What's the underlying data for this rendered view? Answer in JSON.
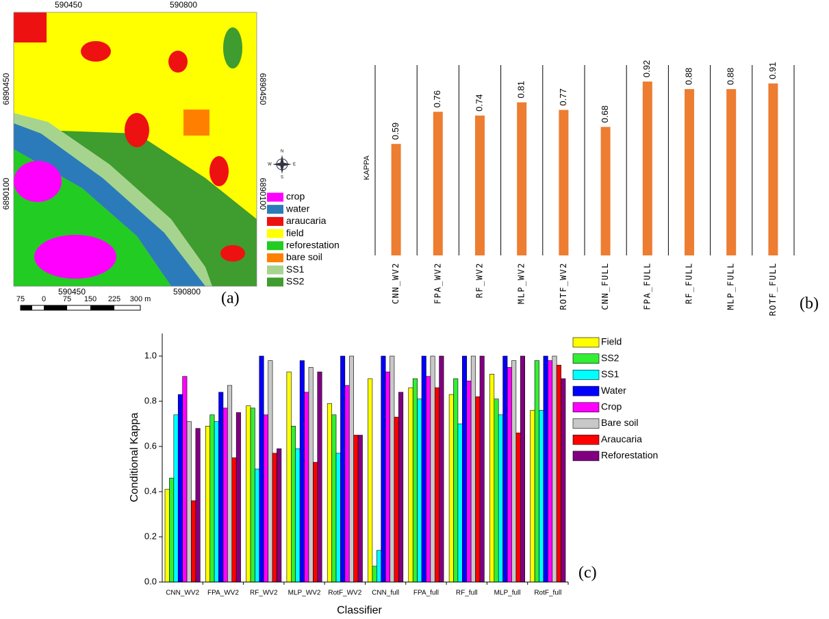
{
  "map": {
    "panel_label": "(a)",
    "top_x_labels": [
      "590450",
      "590800"
    ],
    "bottom_x_labels": [
      "590450",
      "590800"
    ],
    "left_y_labels": [
      "6890450",
      "6890100"
    ],
    "right_y_labels": [
      "6890450",
      "6890100"
    ],
    "compass": [
      "N",
      "E",
      "S",
      "W"
    ],
    "legend": [
      {
        "label": "crop",
        "color": "#ff00ff"
      },
      {
        "label": "water",
        "color": "#2b7bba"
      },
      {
        "label": "araucaria",
        "color": "#ee1111"
      },
      {
        "label": "field",
        "color": "#ffff00"
      },
      {
        "label": "reforestation",
        "color": "#22cc22"
      },
      {
        "label": "bare soil",
        "color": "#ff8000"
      },
      {
        "label": "SS1",
        "color": "#a6d48e"
      },
      {
        "label": "SS2",
        "color": "#3f9c2f"
      }
    ],
    "scale_labels": [
      "75",
      "0",
      "75",
      "150",
      "225",
      "300 m"
    ]
  },
  "chart_data": [
    {
      "type": "bar",
      "panel_label": "(b)",
      "y_label": "KAPPA",
      "categories": [
        "CNN_WV2",
        "FPA_WV2",
        "RF_WV2",
        "MLP_WV2",
        "ROTF_WV2",
        "CNN_FULL",
        "FPA_FULL",
        "RF_FULL",
        "MLP_FULL",
        "ROTF_FULL"
      ],
      "values": [
        0.59,
        0.76,
        0.74,
        0.81,
        0.77,
        0.68,
        0.92,
        0.88,
        0.88,
        0.91
      ],
      "color": "#ed7d31",
      "ylim": [
        0,
        1
      ]
    },
    {
      "type": "grouped_bar",
      "panel_label": "(c)",
      "x_label": "Classifier",
      "y_label": "Conditional Kappa",
      "categories": [
        "CNN_WV2",
        "FPA_WV2",
        "RF_WV2",
        "MLP_WV2",
        "RotF_WV2",
        "CNN_full",
        "FPA_full",
        "RF_full",
        "MLP_full",
        "RotF_full"
      ],
      "series": [
        {
          "name": "Field",
          "color": "#ffff00",
          "values": [
            0.41,
            0.69,
            0.78,
            0.93,
            0.79,
            0.9,
            0.86,
            0.83,
            0.92,
            0.76
          ]
        },
        {
          "name": "SS2",
          "color": "#33ee33",
          "values": [
            0.46,
            0.74,
            0.77,
            0.69,
            0.74,
            0.07,
            0.9,
            0.9,
            0.81,
            0.98
          ]
        },
        {
          "name": "SS1",
          "color": "#00ffff",
          "values": [
            0.74,
            0.71,
            0.5,
            0.59,
            0.57,
            0.14,
            0.81,
            0.7,
            0.74,
            0.76
          ]
        },
        {
          "name": "Water",
          "color": "#0000ff",
          "values": [
            0.83,
            0.84,
            1.0,
            0.98,
            1.0,
            1.0,
            1.0,
            1.0,
            1.0,
            1.0
          ]
        },
        {
          "name": "Crop",
          "color": "#ff00ff",
          "values": [
            0.91,
            0.77,
            0.74,
            0.84,
            0.87,
            0.93,
            0.91,
            0.89,
            0.95,
            0.98
          ]
        },
        {
          "name": "Bare soil",
          "color": "#c8c8c8",
          "values": [
            0.71,
            0.87,
            0.98,
            0.95,
            1.0,
            1.0,
            1.0,
            1.0,
            0.98,
            1.0
          ]
        },
        {
          "name": "Araucaria",
          "color": "#ff0000",
          "values": [
            0.36,
            0.55,
            0.57,
            0.53,
            0.65,
            0.73,
            0.86,
            0.82,
            0.66,
            0.96
          ]
        },
        {
          "name": "Reforestation",
          "color": "#800080",
          "values": [
            0.68,
            0.75,
            0.59,
            0.93,
            0.65,
            0.84,
            1.0,
            1.0,
            1.0,
            0.9
          ]
        }
      ],
      "ylim": [
        0,
        1.1
      ],
      "yticks": [
        {
          "value": 0,
          "label": "0.0"
        },
        0.2,
        0.4,
        0.6,
        0.8,
        {
          "value": 1,
          "label": "1.0"
        }
      ]
    }
  ]
}
